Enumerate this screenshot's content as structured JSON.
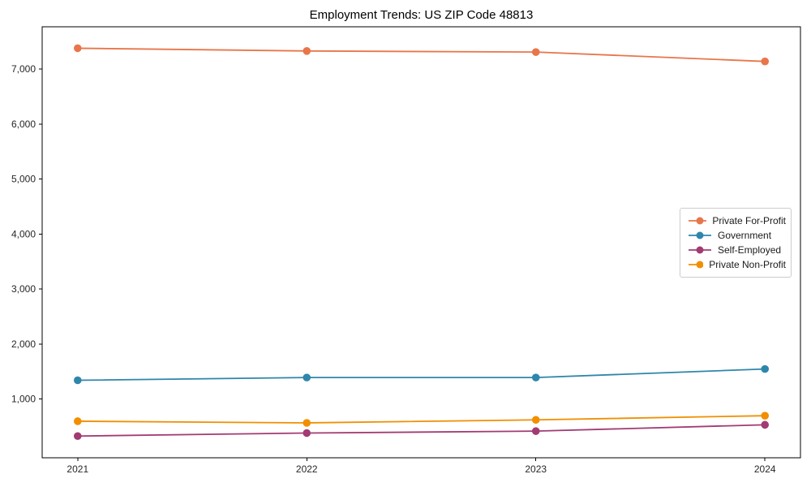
{
  "title": "Employment Trends: US ZIP Code 48813",
  "chart_data": {
    "type": "line",
    "title": "Employment Trends: US ZIP Code 48813",
    "x": [
      2021,
      2022,
      2023,
      2024
    ],
    "x_tick_labels": [
      "2021",
      "2022",
      "2023",
      "2024"
    ],
    "series": [
      {
        "name": "Private For-Profit",
        "color": "#E8764A",
        "values": [
          7380,
          7330,
          7310,
          7140
        ]
      },
      {
        "name": "Government",
        "color": "#2E86AB",
        "values": [
          1340,
          1390,
          1390,
          1545
        ]
      },
      {
        "name": "Self-Employed",
        "color": "#A23B72",
        "values": [
          325,
          380,
          415,
          530
        ]
      },
      {
        "name": "Private Non-Profit",
        "color": "#F18F01",
        "values": [
          595,
          565,
          620,
          695
        ]
      }
    ],
    "xlabel": "",
    "ylabel": "",
    "xlim": [
      2020.845,
      2024.155
    ],
    "ylim": [
      -70,
      7770
    ],
    "yticks": [
      1000,
      2000,
      3000,
      4000,
      5000,
      6000,
      7000
    ],
    "ytick_labels": [
      "1,000",
      "2,000",
      "3,000",
      "4,000",
      "5,000",
      "6,000",
      "7,000"
    ],
    "grid": false,
    "legend_position": "center-right",
    "marker": "circle",
    "axis_color": "#000000",
    "tick_label_color": "#262626",
    "background": "#ffffff"
  }
}
